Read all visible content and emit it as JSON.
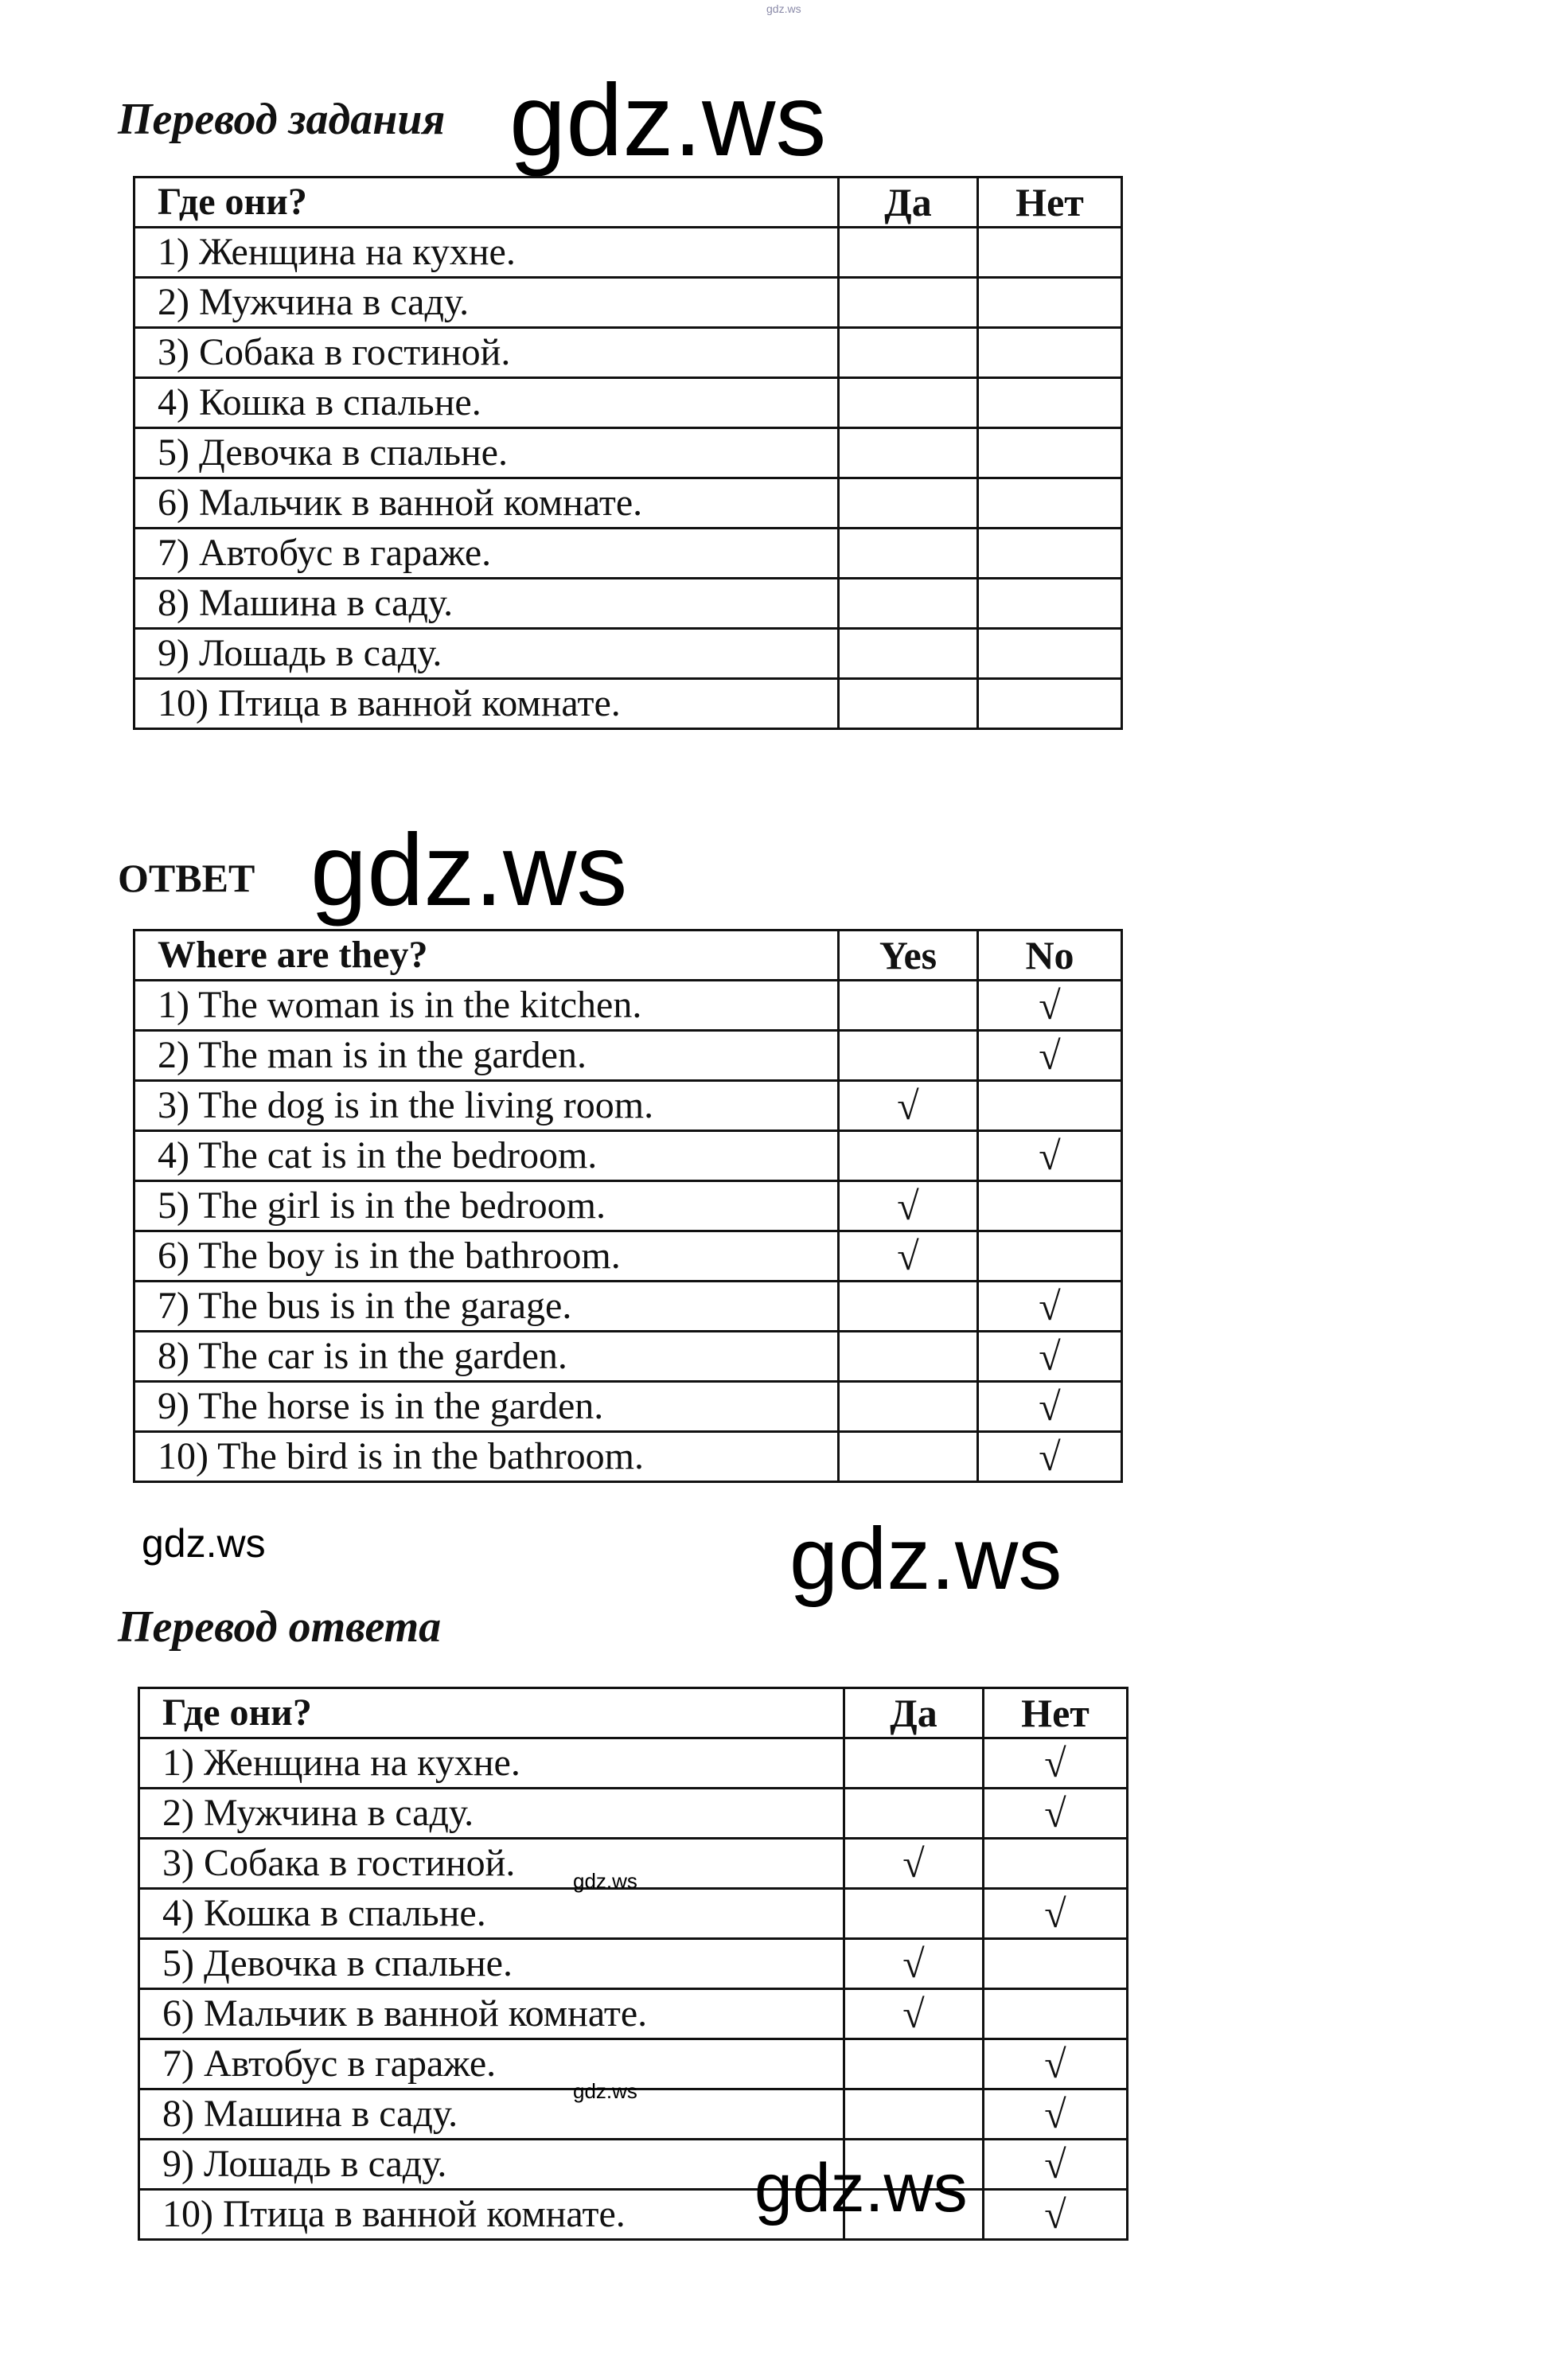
{
  "watermark": "gdz.ws",
  "section1": {
    "title": "Перевод задания",
    "headers": [
      "Где они?",
      "Да",
      "Нет"
    ],
    "rows": [
      {
        "text": "1) Женщина на кухне.",
        "yes": "",
        "no": ""
      },
      {
        "text": "2) Мужчина в саду.",
        "yes": "",
        "no": ""
      },
      {
        "text": "3) Собака в гостиной.",
        "yes": "",
        "no": ""
      },
      {
        "text": "4) Кошка в спальне.",
        "yes": "",
        "no": ""
      },
      {
        "text": "5) Девочка в спальне.",
        "yes": "",
        "no": ""
      },
      {
        "text": "6) Мальчик в ванной комнате.",
        "yes": "",
        "no": ""
      },
      {
        "text": "7) Автобус в гараже.",
        "yes": "",
        "no": ""
      },
      {
        "text": "8) Машина в саду.",
        "yes": "",
        "no": ""
      },
      {
        "text": "9) Лошадь в саду.",
        "yes": "",
        "no": ""
      },
      {
        "text": "10) Птица в ванной комнате.",
        "yes": "",
        "no": ""
      }
    ]
  },
  "section2": {
    "title": "ОТВЕТ",
    "headers": [
      "Where are they?",
      "Yes",
      "No"
    ],
    "rows": [
      {
        "text": "1) The woman is in the kitchen.",
        "yes": "",
        "no": "√"
      },
      {
        "text": "2) The man  is in the garden.",
        "yes": "",
        "no": "√"
      },
      {
        "text": "3) The dog is in the living room.",
        "yes": "√",
        "no": ""
      },
      {
        "text": "4) The cat is in the bedroom.",
        "yes": "",
        "no": "√"
      },
      {
        "text": "5) The girl is in the bedroom.",
        "yes": "√",
        "no": ""
      },
      {
        "text": "6) The boy is in the bathroom.",
        "yes": "√",
        "no": ""
      },
      {
        "text": "7) The bus is in the garage.",
        "yes": "",
        "no": "√"
      },
      {
        "text": "8) The car is in the garden.",
        "yes": "",
        "no": "√"
      },
      {
        "text": "9) The horse is in the garden.",
        "yes": "",
        "no": "√"
      },
      {
        "text": "10) The bird is in the bathroom.",
        "yes": "",
        "no": "√"
      }
    ]
  },
  "section3": {
    "title": "Перевод ответа",
    "headers": [
      "Где они?",
      "Да",
      "Нет"
    ],
    "rows": [
      {
        "text": "1) Женщина на кухне.",
        "yes": "",
        "no": "√"
      },
      {
        "text": "2) Мужчина в саду.",
        "yes": "",
        "no": "√"
      },
      {
        "text": "3) Собака в гостиной.",
        "yes": "√",
        "no": ""
      },
      {
        "text": "4) Кошка в спальне.",
        "yes": "",
        "no": "√"
      },
      {
        "text": "5) Девочка в спальне.",
        "yes": "√",
        "no": ""
      },
      {
        "text": "6) Мальчик в ванной комнате.",
        "yes": "√",
        "no": ""
      },
      {
        "text": "7) Автобус в гараже.",
        "yes": "",
        "no": "√"
      },
      {
        "text": "8) Машина в саду.",
        "yes": "",
        "no": "√"
      },
      {
        "text": "9) Лошадь в саду.",
        "yes": "",
        "no": "√"
      },
      {
        "text": "10) Птица в ванной комнате.",
        "yes": "",
        "no": "√"
      }
    ]
  }
}
